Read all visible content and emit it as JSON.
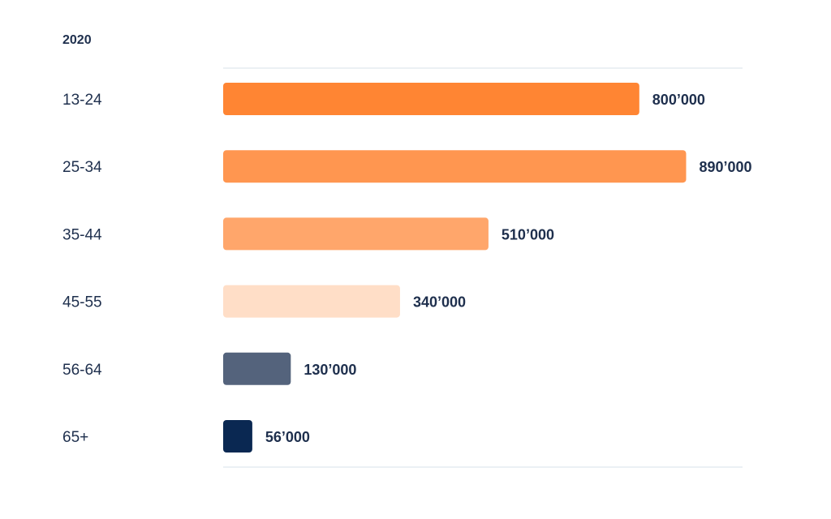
{
  "chart_data": {
    "type": "bar",
    "orientation": "horizontal",
    "title": "2020",
    "categories": [
      "13-24",
      "25-34",
      "35-44",
      "45-55",
      "56-64",
      "65+"
    ],
    "values": [
      800000,
      890000,
      510000,
      340000,
      130000,
      56000
    ],
    "value_labels": [
      "800’000",
      "890’000",
      "510’000",
      "340’000",
      "130’000",
      "56’000"
    ],
    "bar_colors": [
      "#ff8533",
      "#ff9650",
      "#ffa66b",
      "#ffdec7",
      "#54637c",
      "#0a2852"
    ],
    "xlim": [
      0,
      1000000
    ],
    "grid": false,
    "legend": "none"
  }
}
